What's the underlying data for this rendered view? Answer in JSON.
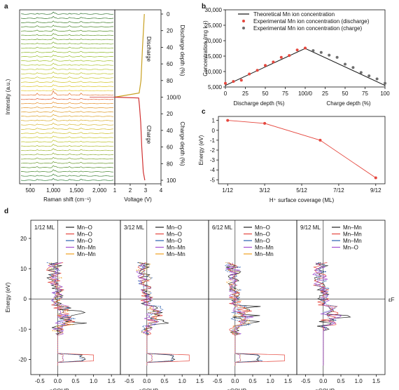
{
  "figure": {
    "panel_letters": [
      "a",
      "b",
      "c",
      "d"
    ]
  },
  "chart_data": [
    {
      "panel": "a",
      "type": "line",
      "subpanels": [
        {
          "name": "raman",
          "xlabel": "Raman shift (cm⁻¹)",
          "ylabel": "Intensity (a.u.)",
          "x_ticks": [
            "500",
            "1,000",
            "1,500",
            "2,000"
          ],
          "xlim": [
            300,
            2300
          ],
          "spectra_count": 40,
          "peak_positions_cm": [
            650,
            1000,
            1050,
            1350,
            1600
          ],
          "color_sequence_note": "green to yellow (discharge), red at 100/0, orange to green (charge)"
        },
        {
          "name": "voltage",
          "xlabel": "Voltage (V)",
          "x_ticks": [
            "1",
            "2",
            "3",
            "4"
          ],
          "xlim": [
            1,
            4
          ],
          "right_ylabel_top": "Discharge depth (%)",
          "right_ylabel_bottom": "Charge depth (%)",
          "right_ticks": [
            "0",
            "20",
            "40",
            "60",
            "80",
            "100/0",
            "20",
            "40",
            "60",
            "80",
            "100"
          ],
          "annotations": [
            "Discharge",
            "Charge"
          ],
          "discharge_curve": [
            [
              2.92,
              0
            ],
            [
              2.86,
              20
            ],
            [
              2.8,
              40
            ],
            [
              2.75,
              60
            ],
            [
              2.7,
              80
            ],
            [
              2.58,
              95
            ],
            [
              1.0,
              100
            ]
          ],
          "charge_curve": [
            [
              1.0,
              100
            ],
            [
              2.55,
              101
            ],
            [
              2.6,
              110
            ],
            [
              2.68,
              130
            ],
            [
              2.75,
              160
            ],
            [
              2.85,
              190
            ],
            [
              2.95,
              200
            ]
          ]
        }
      ]
    },
    {
      "panel": "b",
      "type": "scatter",
      "ylabel": "Concentration (mg l⁻¹)",
      "xlabel_left": "Discharge depth (%)",
      "xlabel_right": "Charge depth (%)",
      "x_ticks": [
        "0",
        "25",
        "50",
        "75",
        "100/0",
        "25",
        "50",
        "75",
        "100"
      ],
      "y_ticks": [
        "5,000",
        "10,000",
        "15,000",
        "20,000",
        "25,000",
        "30,000"
      ],
      "ylim": [
        5000,
        30000
      ],
      "legend": [
        "Theoretical Mn ion concentration",
        "Experimental Mn ion concentration (discharge)",
        "Experimental Mn ion concentration (charge)"
      ],
      "series": [
        {
          "name": "Theoretical Mn ion concentration",
          "kind": "line",
          "x": [
            0,
            100,
            200
          ],
          "y": [
            5500,
            17500,
            5500
          ]
        },
        {
          "name": "Experimental Mn ion concentration (discharge)",
          "kind": "points",
          "color": "#e5473e",
          "x": [
            0,
            10,
            20,
            30,
            40,
            50,
            60,
            70,
            80,
            90,
            100
          ],
          "y": [
            6200,
            6800,
            7200,
            9200,
            10400,
            12000,
            13100,
            14600,
            15200,
            17000,
            17600
          ]
        },
        {
          "name": "Experimental Mn ion concentration (charge)",
          "kind": "points",
          "color": "#6e6e6e",
          "x": [
            110,
            120,
            130,
            140,
            150,
            160,
            170,
            180,
            190,
            200
          ],
          "y": [
            16800,
            16200,
            15300,
            14600,
            12400,
            11300,
            9700,
            8600,
            7600,
            6200
          ]
        }
      ]
    },
    {
      "panel": "c",
      "type": "line",
      "xlabel": "H⁺ surface coverage (ML)",
      "ylabel": "Energy (eV)",
      "x_ticks": [
        "1/12",
        "3/12",
        "5/12",
        "7/12",
        "9/12"
      ],
      "y_ticks": [
        "-5",
        "-4",
        "-3",
        "-2",
        "-1",
        "0",
        "1"
      ],
      "ylim": [
        -5.4,
        1.4
      ],
      "series": [
        {
          "name": "",
          "color": "#e5473e",
          "x": [
            1,
            3,
            6,
            9
          ],
          "y": [
            1.0,
            0.7,
            -1.0,
            -4.8
          ]
        }
      ]
    },
    {
      "panel": "d",
      "type": "line",
      "ylabel": "Energy (eV)",
      "xlabel": "−pCOHP",
      "fermi_label": "εF",
      "y_ticks": [
        "-20",
        "-10",
        "0",
        "10",
        "20"
      ],
      "ylim": [
        -25,
        26
      ],
      "x_ticks": [
        "-0.5",
        "0.0",
        "0.5",
        "1.0",
        "1.5"
      ],
      "xlim": [
        -0.75,
        1.75
      ],
      "subpanels": [
        {
          "title": "1/12 ML",
          "legend": [
            "Mn–O",
            "Mn–O",
            "Mn–O",
            "Mn–Mn",
            "Mn–Mn"
          ]
        },
        {
          "title": "3/12 ML",
          "legend": [
            "Mn–O",
            "Mn–O",
            "Mn–O",
            "Mn–Mn",
            "Mn–Mn"
          ]
        },
        {
          "title": "6/12 ML",
          "legend": [
            "Mn–O",
            "Mn–O",
            "Mn–O",
            "Mn–Mn",
            "Mn–Mn"
          ]
        },
        {
          "title": "9/12 ML",
          "legend": [
            "Mn–Mn",
            "Mn–Mn",
            "Mn–Mn",
            "Mn–O"
          ]
        }
      ],
      "series_colors": [
        "#222222",
        "#e5473e",
        "#2a5fb0",
        "#a64fd1",
        "#f0a020"
      ]
    }
  ]
}
